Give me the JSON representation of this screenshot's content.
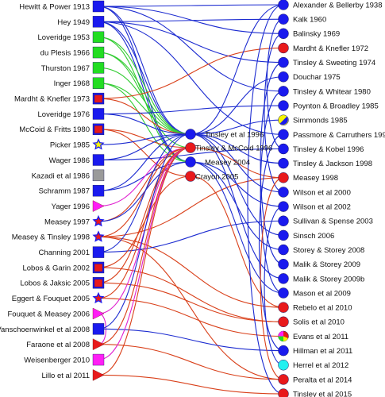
{
  "colors": {
    "blue": "#1a1aee",
    "red": "#e8191b",
    "green": "#22dd22",
    "pink": "#ff1ef5",
    "gray": "#9a9a9a",
    "yellow": "#f5f500",
    "cyan": "#22f0f0",
    "edge_blue": "#1c2bd0",
    "edge_red": "#d9401a",
    "edge_green": "#33cc33",
    "edge_pink": "#e022d0"
  },
  "left_column": [
    {
      "label": "Hewitt & Power 1913",
      "shape": "square",
      "fill": "blue"
    },
    {
      "label": "Hey 1949",
      "shape": "square",
      "fill": "blue"
    },
    {
      "label": "Loveridge 1953",
      "shape": "square",
      "fill": "green"
    },
    {
      "label": "du Plesis 1966",
      "shape": "square",
      "fill": "green"
    },
    {
      "label": "Thurston 1967",
      "shape": "square",
      "fill": "green"
    },
    {
      "label": "Inger 1968",
      "shape": "square",
      "fill": "green"
    },
    {
      "label": "Mardht & Knefler 1973",
      "shape": "square-inner",
      "fill": "blue",
      "inner": "red"
    },
    {
      "label": "Loveridge 1976",
      "shape": "square",
      "fill": "blue"
    },
    {
      "label": "McCoid & Fritts 1980",
      "shape": "square-inner",
      "fill": "blue",
      "inner": "red"
    },
    {
      "label": "Picker 1985",
      "shape": "star",
      "fill": "blue",
      "inner": "yellow"
    },
    {
      "label": "Wager 1986",
      "shape": "square",
      "fill": "blue"
    },
    {
      "label": "Kazadi et al 1986",
      "shape": "square",
      "fill": "gray"
    },
    {
      "label": "Schramm 1987",
      "shape": "square",
      "fill": "blue"
    },
    {
      "label": "Yager 1996",
      "shape": "triangle",
      "fill": "pink"
    },
    {
      "label": "Measey 1997",
      "shape": "star",
      "fill": "blue",
      "inner": "red"
    },
    {
      "label": "Measey & Tinsley 1998",
      "shape": "star",
      "fill": "blue",
      "inner": "red"
    },
    {
      "label": "Channing 2001",
      "shape": "square",
      "fill": "blue"
    },
    {
      "label": "Lobos & Garin 2002",
      "shape": "square-inner",
      "fill": "blue",
      "inner": "red"
    },
    {
      "label": "Lobos & Jaksic 2005",
      "shape": "square-inner",
      "fill": "blue",
      "inner": "red"
    },
    {
      "label": "Eggert & Fouquet 2005",
      "shape": "star",
      "fill": "blue",
      "inner": "red"
    },
    {
      "label": "Fouquet & Measey 2006",
      "shape": "triangle",
      "fill": "pink"
    },
    {
      "label": "Vanschoenwinkel et al 2008",
      "shape": "square",
      "fill": "blue"
    },
    {
      "label": "Faraone et al 2008",
      "shape": "triangle",
      "fill": "red"
    },
    {
      "label": "Weisenberger 2010",
      "shape": "square",
      "fill": "pink"
    },
    {
      "label": "Lillo et al 2011",
      "shape": "triangle",
      "fill": "red"
    }
  ],
  "middle_column": [
    {
      "label": "Tinsley et al 1996",
      "fill": "blue"
    },
    {
      "label": "Tinsley & McCoid 1996",
      "fill": "red"
    },
    {
      "label": "Measey 2004",
      "fill": "blue"
    },
    {
      "label": "Crayon 2005",
      "fill": "red"
    }
  ],
  "right_column": [
    {
      "label": "Alexander & Bellerby 1938",
      "fill": "blue"
    },
    {
      "label": "Kalk 1960",
      "fill": "blue"
    },
    {
      "label": "Balinsky 1969",
      "fill": "blue"
    },
    {
      "label": "Mardht & Knefler 1972",
      "fill": "red"
    },
    {
      "label": "Tinsley & Sweeting 1974",
      "fill": "blue"
    },
    {
      "label": "Douchar 1975",
      "fill": "blue"
    },
    {
      "label": "Tinsley & Whitear 1980",
      "fill": "blue"
    },
    {
      "label": "Poynton & Broadley 1985",
      "fill": "blue"
    },
    {
      "label": "Simmonds 1985",
      "fill": "yellow-blue"
    },
    {
      "label": "Passmore & Carruthers 1995",
      "fill": "blue"
    },
    {
      "label": "Tinsley & Kobel 1996",
      "fill": "blue"
    },
    {
      "label": "Tinsley & Jackson 1998",
      "fill": "blue"
    },
    {
      "label": "Measey 1998",
      "fill": "red"
    },
    {
      "label": "Wilson et al 2000",
      "fill": "blue"
    },
    {
      "label": "Wilson et al 2002",
      "fill": "blue"
    },
    {
      "label": "Sullivan & Spense 2003",
      "fill": "blue"
    },
    {
      "label": "Sinsch 2006",
      "fill": "blue"
    },
    {
      "label": "Storey & Storey 2008",
      "fill": "blue"
    },
    {
      "label": "Malik & Storey 2009",
      "fill": "blue"
    },
    {
      "label": "Malik & Storey 2009b",
      "fill": "blue"
    },
    {
      "label": "Mason et al 2009",
      "fill": "blue"
    },
    {
      "label": "Rebelo et al 2010",
      "fill": "red"
    },
    {
      "label": "Solis et al 2010",
      "fill": "red"
    },
    {
      "label": "Evans et al 2011",
      "fill": "mixed"
    },
    {
      "label": "Hillman et al 2011",
      "fill": "blue"
    },
    {
      "label": "Herrel et al 2012",
      "fill": "cyan"
    },
    {
      "label": "Peralta et al 2014",
      "fill": "red"
    },
    {
      "label": "Tinsley et al 2015",
      "fill": "red"
    }
  ],
  "edges": [
    {
      "from": "L0",
      "to": "M0",
      "color": "edge_blue"
    },
    {
      "from": "L0",
      "to": "R0",
      "color": "edge_blue"
    },
    {
      "from": "L0",
      "to": "R2",
      "color": "edge_blue"
    },
    {
      "from": "L0",
      "to": "R6",
      "color": "edge_blue"
    },
    {
      "from": "L0",
      "to": "M2",
      "color": "edge_blue"
    },
    {
      "from": "L1",
      "to": "M0",
      "color": "edge_blue"
    },
    {
      "from": "L1",
      "to": "R1",
      "color": "edge_blue"
    },
    {
      "from": "L1",
      "to": "R4",
      "color": "edge_blue"
    },
    {
      "from": "L1",
      "to": "M2",
      "color": "edge_blue"
    },
    {
      "from": "L1",
      "to": "R9",
      "color": "edge_blue"
    },
    {
      "from": "L2",
      "to": "M0",
      "color": "edge_green"
    },
    {
      "from": "L2",
      "to": "M2",
      "color": "edge_green"
    },
    {
      "from": "L3",
      "to": "M0",
      "color": "edge_green"
    },
    {
      "from": "L3",
      "to": "M1",
      "color": "edge_green"
    },
    {
      "from": "L4",
      "to": "M0",
      "color": "edge_green"
    },
    {
      "from": "L5",
      "to": "M0",
      "color": "edge_green"
    },
    {
      "from": "L5",
      "to": "M2",
      "color": "edge_green"
    },
    {
      "from": "L6",
      "to": "M0",
      "color": "edge_red"
    },
    {
      "from": "L6",
      "to": "R3",
      "color": "edge_red"
    },
    {
      "from": "L7",
      "to": "M0",
      "color": "edge_blue"
    },
    {
      "from": "L7",
      "to": "R7",
      "color": "edge_blue"
    },
    {
      "from": "L8",
      "to": "M1",
      "color": "edge_red"
    },
    {
      "from": "L8",
      "to": "M3",
      "color": "edge_red"
    },
    {
      "from": "L9",
      "to": "M0",
      "color": "edge_blue"
    },
    {
      "from": "L10",
      "to": "M0",
      "color": "edge_blue"
    },
    {
      "from": "L10",
      "to": "R10",
      "color": "edge_blue"
    },
    {
      "from": "L12",
      "to": "M0",
      "color": "edge_blue"
    },
    {
      "from": "L12",
      "to": "M2",
      "color": "edge_blue"
    },
    {
      "from": "L13",
      "to": "M1",
      "color": "edge_pink"
    },
    {
      "from": "L14",
      "to": "M1",
      "color": "edge_red"
    },
    {
      "from": "L14",
      "to": "M2",
      "color": "edge_blue"
    },
    {
      "from": "L15",
      "to": "M1",
      "color": "edge_red"
    },
    {
      "from": "L15",
      "to": "R12",
      "color": "edge_red"
    },
    {
      "from": "L15",
      "to": "R21",
      "color": "edge_red"
    },
    {
      "from": "L15",
      "to": "R26",
      "color": "edge_red"
    },
    {
      "from": "L16",
      "to": "M0",
      "color": "edge_blue"
    },
    {
      "from": "L16",
      "to": "R15",
      "color": "edge_blue"
    },
    {
      "from": "L17",
      "to": "M3",
      "color": "edge_red"
    },
    {
      "from": "L17",
      "to": "R22",
      "color": "edge_red"
    },
    {
      "from": "L18",
      "to": "M1",
      "color": "edge_red"
    },
    {
      "from": "L18",
      "to": "R22",
      "color": "edge_red"
    },
    {
      "from": "L19",
      "to": "M1",
      "color": "edge_red"
    },
    {
      "from": "L19",
      "to": "R23",
      "color": "edge_red"
    },
    {
      "from": "L20",
      "to": "M1",
      "color": "edge_pink"
    },
    {
      "from": "L20",
      "to": "L22",
      "color": "edge_pink"
    },
    {
      "from": "L21",
      "to": "M0",
      "color": "edge_blue"
    },
    {
      "from": "L21",
      "to": "R24",
      "color": "edge_blue"
    },
    {
      "from": "L22",
      "to": "M1",
      "color": "edge_red"
    },
    {
      "from": "L22",
      "to": "R26",
      "color": "edge_red"
    },
    {
      "from": "L23",
      "to": "M1",
      "color": "edge_pink"
    },
    {
      "from": "L24",
      "to": "M1",
      "color": "edge_red"
    },
    {
      "from": "L24",
      "to": "R27",
      "color": "edge_red"
    },
    {
      "from": "M0",
      "to": "R0",
      "color": "edge_blue"
    },
    {
      "from": "M0",
      "to": "R5",
      "color": "edge_blue"
    },
    {
      "from": "M0",
      "to": "R8",
      "color": "edge_blue"
    },
    {
      "from": "M0",
      "to": "R11",
      "color": "edge_blue"
    },
    {
      "from": "M0",
      "to": "R13",
      "color": "edge_blue"
    },
    {
      "from": "M0",
      "to": "R16",
      "color": "edge_blue"
    },
    {
      "from": "M0",
      "to": "R19",
      "color": "edge_blue"
    },
    {
      "from": "M2",
      "to": "R14",
      "color": "edge_blue"
    },
    {
      "from": "M2",
      "to": "R17",
      "color": "edge_blue"
    },
    {
      "from": "M2",
      "to": "R20",
      "color": "edge_blue"
    },
    {
      "from": "M1",
      "to": "R12",
      "color": "edge_red"
    },
    {
      "from": "M3",
      "to": "R21",
      "color": "edge_red"
    },
    {
      "from": "R0",
      "to": "R27",
      "color": "edge_blue"
    },
    {
      "from": "R1",
      "to": "R10",
      "color": "edge_blue"
    },
    {
      "from": "R2",
      "to": "R13",
      "color": "edge_blue"
    },
    {
      "from": "R4",
      "to": "R18",
      "color": "edge_blue"
    },
    {
      "from": "R6",
      "to": "R20",
      "color": "edge_blue"
    },
    {
      "from": "R9",
      "to": "R24",
      "color": "edge_blue"
    },
    {
      "from": "R12",
      "to": "R26",
      "color": "edge_red"
    },
    {
      "from": "R14",
      "to": "R25",
      "color": "edge_blue"
    }
  ]
}
